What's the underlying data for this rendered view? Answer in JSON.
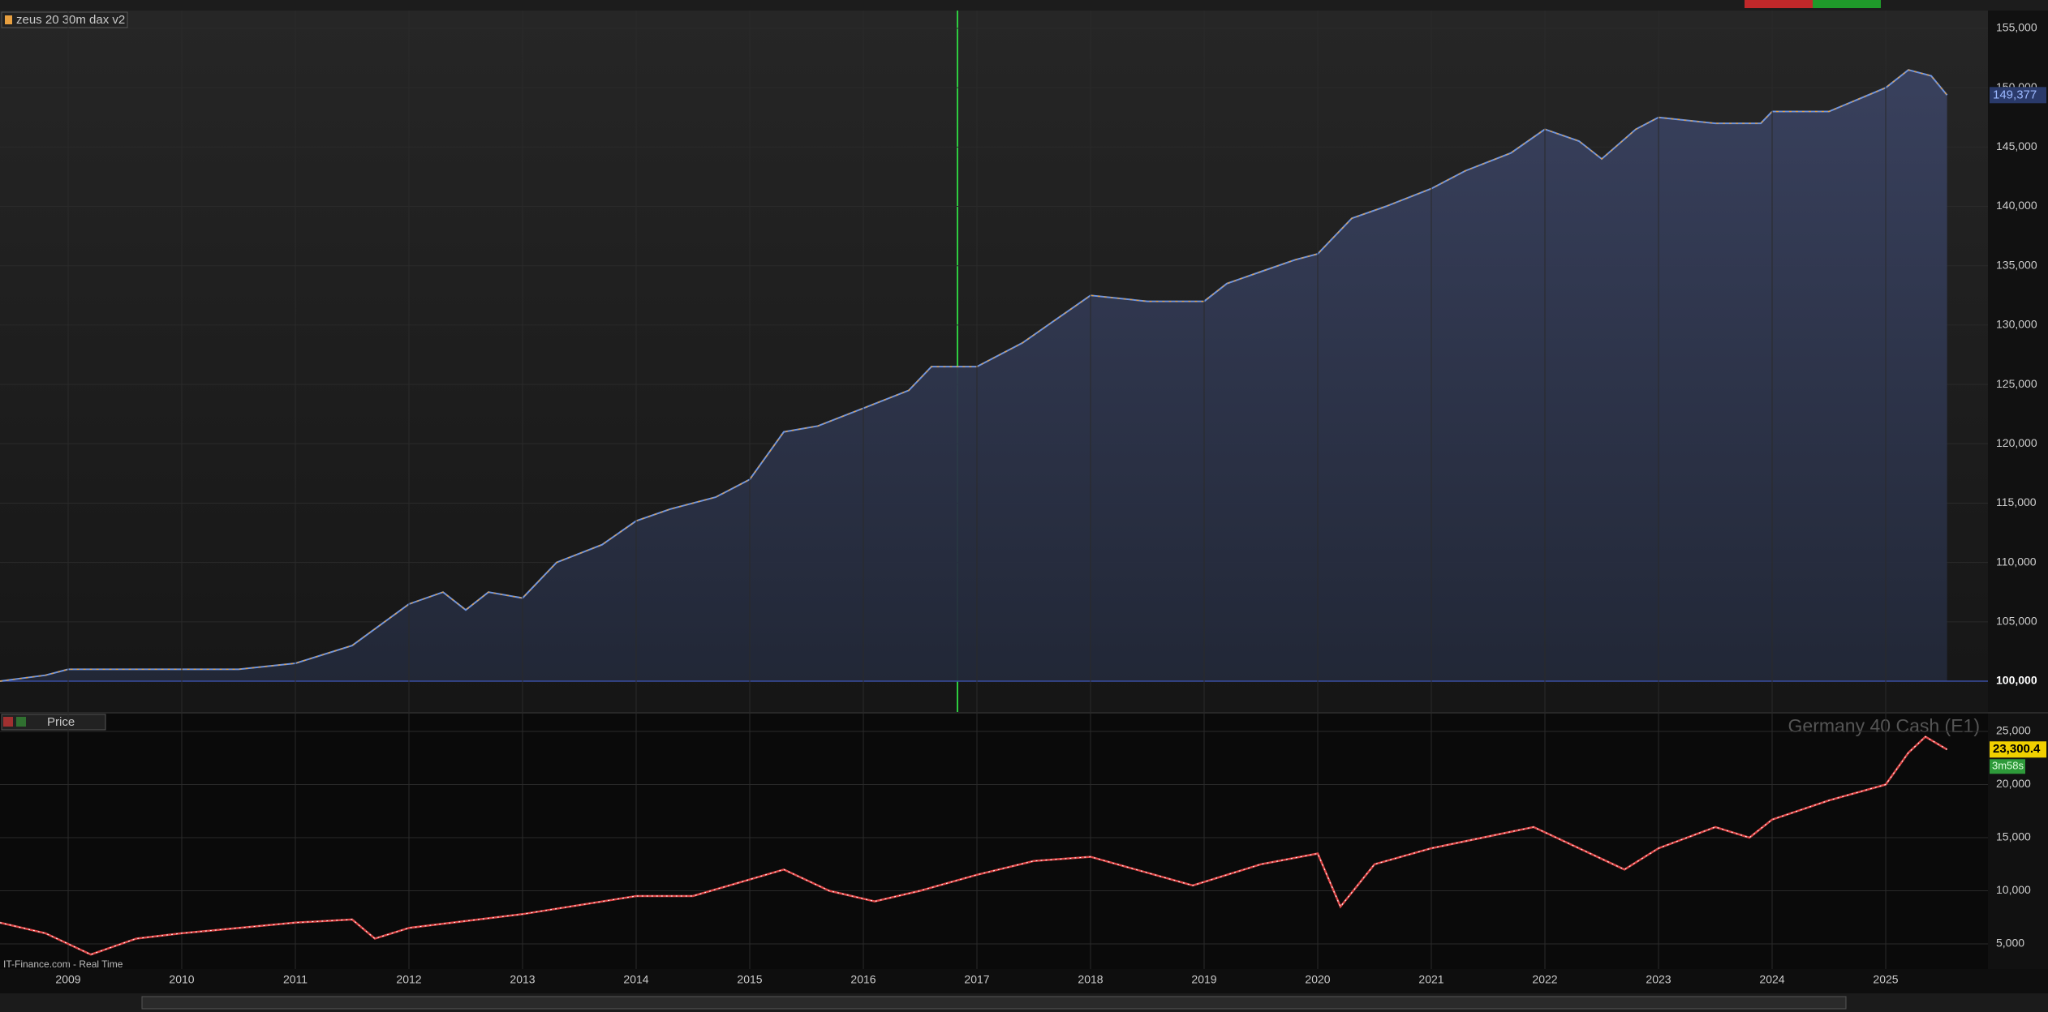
{
  "chart_data": [
    {
      "type": "area",
      "title": "zeus 20 30m dax v2",
      "last_value_label": "149,377",
      "xlim": [
        2008.4,
        2025.9
      ],
      "ylim": [
        100000,
        155000
      ],
      "yticks": [
        {
          "value": 100000,
          "label": "100,000"
        },
        {
          "value": 105000,
          "label": "105,000"
        },
        {
          "value": 110000,
          "label": "110,000"
        },
        {
          "value": 115000,
          "label": "115,000"
        },
        {
          "value": 120000,
          "label": "120,000"
        },
        {
          "value": 125000,
          "label": "125,000"
        },
        {
          "value": 130000,
          "label": "130,000"
        },
        {
          "value": 135000,
          "label": "135,000"
        },
        {
          "value": 140000,
          "label": "140,000"
        },
        {
          "value": 145000,
          "label": "145,000"
        },
        {
          "value": 150000,
          "label": "150,000"
        },
        {
          "value": 155000,
          "label": "155,000"
        }
      ],
      "grid": true,
      "x": [
        2008.4,
        2008.8,
        2009.0,
        2010.5,
        2011.0,
        2011.5,
        2012.0,
        2012.3,
        2012.5,
        2012.7,
        2013.0,
        2013.3,
        2013.7,
        2014.0,
        2014.3,
        2014.7,
        2015.0,
        2015.3,
        2015.6,
        2016.0,
        2016.4,
        2016.6,
        2017.0,
        2017.4,
        2017.7,
        2018.0,
        2018.5,
        2019.0,
        2019.2,
        2019.5,
        2019.8,
        2020.0,
        2020.3,
        2020.6,
        2021.0,
        2021.3,
        2021.7,
        2022.0,
        2022.3,
        2022.5,
        2022.8,
        2023.0,
        2023.5,
        2023.9,
        2024.0,
        2024.5,
        2025.0,
        2025.2,
        2025.4,
        2025.54
      ],
      "series": [
        {
          "name": "zeus 20 30m dax v2",
          "color": "#6f95e0",
          "values": [
            100000,
            100500,
            101000,
            101000,
            101500,
            103000,
            106500,
            107500,
            106000,
            107500,
            107000,
            110000,
            111500,
            113500,
            114500,
            115500,
            117000,
            121000,
            121500,
            123000,
            124500,
            126500,
            126500,
            128500,
            130500,
            132500,
            132000,
            132000,
            133500,
            134500,
            135500,
            136000,
            139000,
            140000,
            141500,
            143000,
            144500,
            146500,
            145500,
            144000,
            146500,
            147500,
            147000,
            147000,
            148000,
            148000,
            150000,
            151500,
            151000,
            149377
          ]
        }
      ]
    },
    {
      "type": "line",
      "title": "Price",
      "instrument": "Germany 40 Cash (E1)",
      "last_value_label": "23,300.4",
      "countdown": "3m58s",
      "source": "IT-Finance.com - Real Time",
      "xlim": [
        2008.4,
        2025.9
      ],
      "ylim": [
        2000,
        27000
      ],
      "xticks": [
        2009,
        2010,
        2011,
        2012,
        2013,
        2014,
        2015,
        2016,
        2017,
        2018,
        2019,
        2020,
        2021,
        2022,
        2023,
        2024,
        2025
      ],
      "yticks": [
        {
          "value": 5000,
          "label": "5,000"
        },
        {
          "value": 10000,
          "label": "10,000"
        },
        {
          "value": 15000,
          "label": "15,000"
        },
        {
          "value": 20000,
          "label": "20,000"
        },
        {
          "value": 25000,
          "label": "25,000"
        }
      ],
      "grid": true,
      "x": [
        2008.4,
        2008.8,
        2009.2,
        2009.6,
        2010.0,
        2011.0,
        2011.5,
        2011.7,
        2012.0,
        2013.0,
        2014.0,
        2014.5,
        2015.3,
        2015.7,
        2016.1,
        2016.5,
        2017.0,
        2017.5,
        2018.0,
        2018.9,
        2019.5,
        2020.0,
        2020.2,
        2020.5,
        2021.0,
        2021.9,
        2022.7,
        2023.0,
        2023.5,
        2023.8,
        2024.0,
        2024.5,
        2025.0,
        2025.2,
        2025.35,
        2025.54
      ],
      "series": [
        {
          "name": "Price",
          "color": "#e04848",
          "values": [
            7000,
            6000,
            4000,
            5500,
            6000,
            7000,
            7300,
            5500,
            6500,
            7800,
            9500,
            9500,
            12000,
            10000,
            9000,
            10000,
            11500,
            12800,
            13200,
            10500,
            12500,
            13500,
            8500,
            12500,
            14000,
            16000,
            12000,
            14000,
            16000,
            15000,
            16700,
            18500,
            20000,
            23000,
            24500,
            23300.4
          ]
        }
      ]
    }
  ]
}
